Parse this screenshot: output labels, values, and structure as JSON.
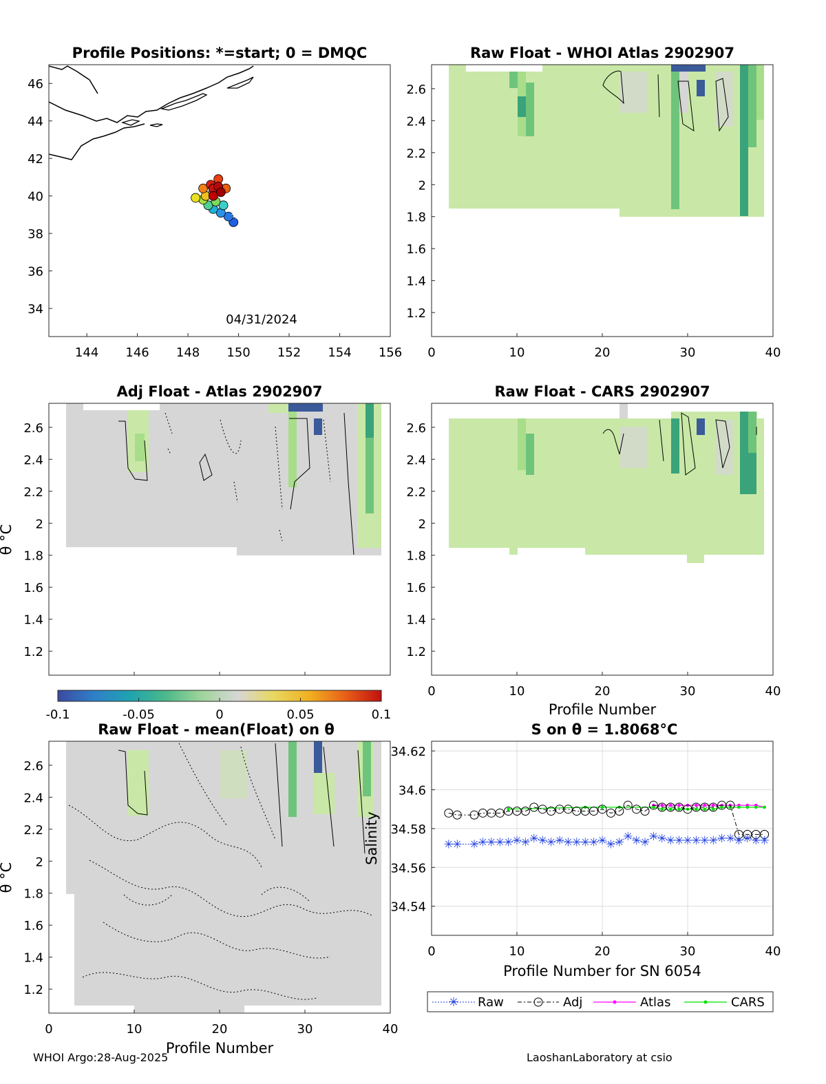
{
  "colors": {
    "green": "#c9e8a7",
    "green2": "#a8dd8a",
    "green3": "#6fc47c",
    "green4": "#3aa37a",
    "gray": "#d6d6d6",
    "blue_dark": "#3b5a9a",
    "raw": "#1f3fe0",
    "adj": "#000000",
    "atlas": "#ff00ff",
    "cars": "#00e000",
    "coast": "#000000"
  },
  "colorbar": {
    "ticks": [
      "-0.1",
      "-0.05",
      "0",
      "0.05",
      "0.1"
    ],
    "stops": [
      "#3b4aa0",
      "#2f7fc8",
      "#1fa3b0",
      "#4cb98a",
      "#9fd49a",
      "#d6d6d6",
      "#e8d860",
      "#f0b020",
      "#e86018",
      "#c01010"
    ]
  },
  "footer": {
    "left": "WHOI Argo:28-Aug-2025",
    "right": "LaoshanLaboratory at csio"
  },
  "chart_data": [
    {
      "id": "map",
      "type": "scatter",
      "title": "Profile Positions: *=start; 0 = DMQC",
      "xlim": [
        142.5,
        156
      ],
      "ylim": [
        32.5,
        47
      ],
      "xticks": [
        "144",
        "146",
        "148",
        "150",
        "152",
        "154",
        "156"
      ],
      "yticks": [
        "34",
        "36",
        "38",
        "40",
        "42",
        "44",
        "46"
      ],
      "annotation": "04/31/2024",
      "start": {
        "lon": 149.9,
        "lat": 39.0
      },
      "positions": [
        {
          "lon": 149.8,
          "lat": 38.6,
          "c": "#1f5fe0"
        },
        {
          "lon": 149.6,
          "lat": 38.9,
          "c": "#2878e8"
        },
        {
          "lon": 149.3,
          "lat": 39.1,
          "c": "#2a95e8"
        },
        {
          "lon": 149.0,
          "lat": 39.3,
          "c": "#20b0d8"
        },
        {
          "lon": 149.4,
          "lat": 39.5,
          "c": "#38d0c8"
        },
        {
          "lon": 148.8,
          "lat": 39.5,
          "c": "#50d090"
        },
        {
          "lon": 149.1,
          "lat": 39.7,
          "c": "#80d860"
        },
        {
          "lon": 148.6,
          "lat": 39.8,
          "c": "#a8e040"
        },
        {
          "lon": 148.3,
          "lat": 39.9,
          "c": "#e8e020"
        },
        {
          "lon": 148.7,
          "lat": 40.0,
          "c": "#f0c020"
        },
        {
          "lon": 149.0,
          "lat": 40.2,
          "c": "#f0a018"
        },
        {
          "lon": 148.6,
          "lat": 40.4,
          "c": "#f08018"
        },
        {
          "lon": 149.5,
          "lat": 40.4,
          "c": "#e86010"
        },
        {
          "lon": 149.2,
          "lat": 40.9,
          "c": "#e84010"
        },
        {
          "lon": 148.9,
          "lat": 40.6,
          "c": "#d82010"
        },
        {
          "lon": 149.0,
          "lat": 40.4,
          "c": "#c81010"
        },
        {
          "lon": 149.2,
          "lat": 40.5,
          "c": "#b80808"
        },
        {
          "lon": 149.3,
          "lat": 40.2,
          "c": "#a00000"
        },
        {
          "lon": 149.0,
          "lat": 40.0,
          "c": "#c00000"
        }
      ]
    },
    {
      "id": "raw-atlas",
      "type": "heatmap",
      "title": "Raw Float - WHOI Atlas  2902907",
      "xlim": [
        0,
        40
      ],
      "ylim": [
        1.05,
        2.75
      ],
      "xticks": [
        "0",
        "10",
        "20",
        "30",
        "40"
      ],
      "yticks": [
        "1.2",
        "1.4",
        "1.6",
        "1.8",
        "2",
        "2.2",
        "2.4",
        "2.6"
      ]
    },
    {
      "id": "adj-atlas",
      "type": "heatmap",
      "title": "Adj Float - Atlas  2902907",
      "ylabel": "θ °C",
      "xlim": [
        0,
        40
      ],
      "ylim": [
        1.05,
        2.75
      ],
      "yticks": [
        "1.2",
        "1.4",
        "1.6",
        "1.8",
        "2",
        "2.2",
        "2.4",
        "2.6"
      ]
    },
    {
      "id": "raw-cars",
      "type": "heatmap",
      "title": "Raw Float - CARS  2902907",
      "xlabel": "Profile Number",
      "xlim": [
        0,
        40
      ],
      "ylim": [
        1.05,
        2.75
      ],
      "xticks": [
        "0",
        "10",
        "20",
        "30",
        "40"
      ],
      "yticks": [
        "1.2",
        "1.4",
        "1.6",
        "1.8",
        "2",
        "2.2",
        "2.4",
        "2.6"
      ]
    },
    {
      "id": "raw-mean",
      "type": "heatmap",
      "title": "Raw Float - mean(Float) on θ",
      "xlabel": "Profile Number",
      "ylabel": "θ °C",
      "xlim": [
        0,
        40
      ],
      "ylim": [
        1.05,
        2.75
      ],
      "xticks": [
        "0",
        "10",
        "20",
        "30",
        "40"
      ],
      "yticks": [
        "1.2",
        "1.4",
        "1.6",
        "1.8",
        "2",
        "2.2",
        "2.4",
        "2.6"
      ]
    },
    {
      "id": "salinity",
      "type": "line",
      "title": "S on θ = 1.8068°C",
      "xlabel": "Profile Number for SN 6054",
      "ylabel": "Salinity",
      "xlim": [
        0,
        40
      ],
      "ylim": [
        34.525,
        34.625
      ],
      "xticks": [
        "0",
        "10",
        "20",
        "30",
        "40"
      ],
      "yticks": [
        "34.54",
        "34.56",
        "34.58",
        "34.6",
        "34.62"
      ],
      "legend": [
        "Raw",
        "Adj",
        "Atlas",
        "CARS"
      ],
      "series": [
        {
          "name": "Raw",
          "x": [
            2,
            3,
            5,
            6,
            7,
            8,
            9,
            10,
            11,
            12,
            13,
            14,
            15,
            16,
            17,
            18,
            19,
            20,
            21,
            22,
            23,
            24,
            25,
            26,
            27,
            28,
            29,
            30,
            31,
            32,
            33,
            34,
            35,
            36,
            37,
            38,
            39
          ],
          "y": [
            34.572,
            34.572,
            34.572,
            34.573,
            34.573,
            34.573,
            34.573,
            34.574,
            34.573,
            34.575,
            34.574,
            34.573,
            34.574,
            34.573,
            34.573,
            34.573,
            34.573,
            34.574,
            34.572,
            34.573,
            34.576,
            34.574,
            34.573,
            34.576,
            34.575,
            34.574,
            34.574,
            34.574,
            34.574,
            34.574,
            34.574,
            34.575,
            34.575,
            34.574,
            34.575,
            34.574,
            34.574
          ]
        },
        {
          "name": "Adj",
          "x": [
            2,
            3,
            5,
            6,
            7,
            8,
            9,
            10,
            11,
            12,
            13,
            14,
            15,
            16,
            17,
            18,
            19,
            20,
            21,
            22,
            23,
            24,
            25,
            26,
            27,
            28,
            29,
            30,
            31,
            32,
            33,
            34,
            35,
            36,
            37,
            38,
            39
          ],
          "y": [
            34.588,
            34.587,
            34.587,
            34.588,
            34.588,
            34.588,
            34.589,
            34.589,
            34.589,
            34.591,
            34.59,
            34.589,
            34.59,
            34.59,
            34.589,
            34.589,
            34.589,
            34.59,
            34.588,
            34.589,
            34.592,
            34.59,
            34.589,
            34.592,
            34.591,
            34.591,
            34.591,
            34.59,
            34.591,
            34.591,
            34.591,
            34.592,
            34.592,
            34.577,
            34.577,
            34.577,
            34.577
          ]
        },
        {
          "name": "Atlas",
          "x": [
            26,
            27,
            28,
            29,
            30,
            31,
            32,
            33,
            34,
            35,
            36,
            37,
            38,
            39
          ],
          "y": [
            34.592,
            34.592,
            34.592,
            34.592,
            34.592,
            34.592,
            34.592,
            34.592,
            34.592,
            34.592,
            34.592,
            34.592,
            34.592,
            34.591
          ]
        },
        {
          "name": "CARS",
          "x": [
            9,
            18,
            20,
            22,
            26,
            27,
            28,
            29,
            30,
            31,
            32,
            33,
            34,
            35,
            36,
            37,
            38,
            39
          ],
          "y": [
            34.59,
            34.591,
            34.591,
            34.591,
            34.591,
            34.59,
            34.59,
            34.59,
            34.59,
            34.59,
            34.59,
            34.59,
            34.591,
            34.591,
            34.591,
            34.591,
            34.591,
            34.591
          ]
        }
      ]
    }
  ]
}
